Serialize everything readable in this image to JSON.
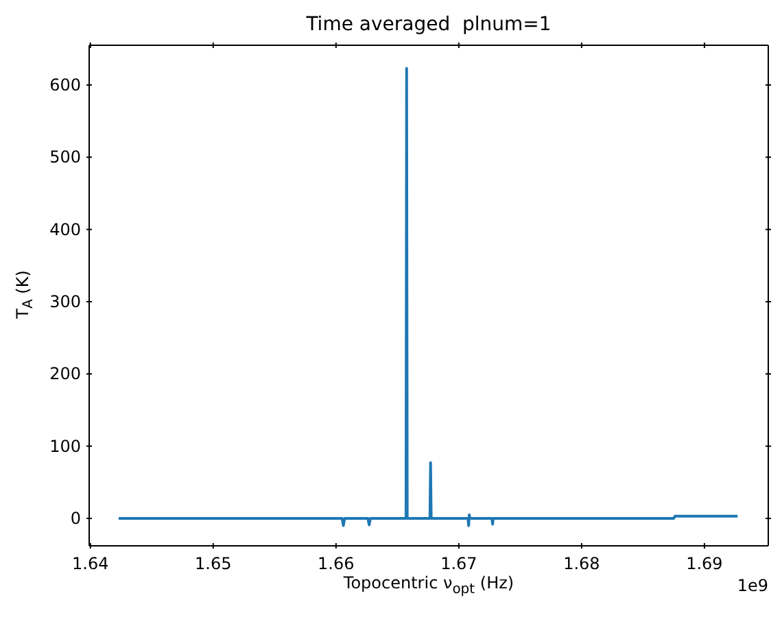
{
  "chart_data": {
    "type": "line",
    "title": "Time averaged  plnum=1",
    "xlabel": "Topocentric ν$_{opt}$ (Hz)",
    "ylabel": "T$_{A}$ (K)",
    "annotations": [
      "1e9"
    ],
    "x": [
      1.6423,
      1.6605,
      1.6606,
      1.6607,
      1.6626,
      1.6627,
      1.6628,
      1.6657,
      1.66575,
      1.6658,
      1.66765,
      1.6677,
      1.66775,
      1.67075,
      1.6708,
      1.67085,
      1.6709,
      1.6727,
      1.67275,
      1.6728,
      1.6875,
      1.6876,
      1.6927
    ],
    "series": [
      {
        "color": "#1f77b4",
        "values": [
          0,
          0,
          -10,
          0,
          0,
          -9,
          0,
          0,
          623,
          0,
          0,
          77,
          0,
          0,
          -10,
          5,
          0,
          0,
          -8,
          0,
          0,
          3,
          3
        ]
      }
    ],
    "xlim": [
      1.6399,
      1.6952
    ],
    "xticks": [
      1.64,
      1.65,
      1.66,
      1.67,
      1.68,
      1.69
    ],
    "ylim": [
      -38,
      655
    ],
    "yticks": [
      0,
      100,
      200,
      300,
      400,
      500,
      600
    ],
    "grid": false,
    "legend": false,
    "marker": "none",
    "line_style": "solid"
  }
}
